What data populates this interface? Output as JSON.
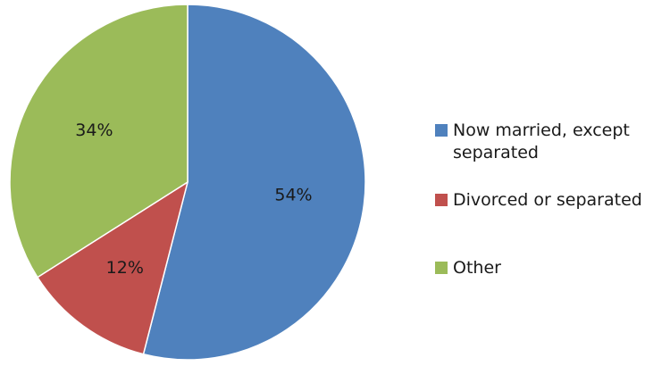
{
  "chart_data": {
    "type": "pie",
    "categories": [
      "Now married, except separated",
      "Divorced or separated",
      "Other"
    ],
    "values": [
      54,
      12,
      34
    ],
    "data_labels": [
      "54%",
      "12%",
      "34%"
    ],
    "colors": [
      "#4f81bd",
      "#c0504d",
      "#9bbb59"
    ],
    "start_angle_deg": 0,
    "direction": "clockwise",
    "legend": {
      "position": "right",
      "entries": [
        "Now married, except separated",
        "Divorced or separated",
        "Other"
      ]
    }
  }
}
